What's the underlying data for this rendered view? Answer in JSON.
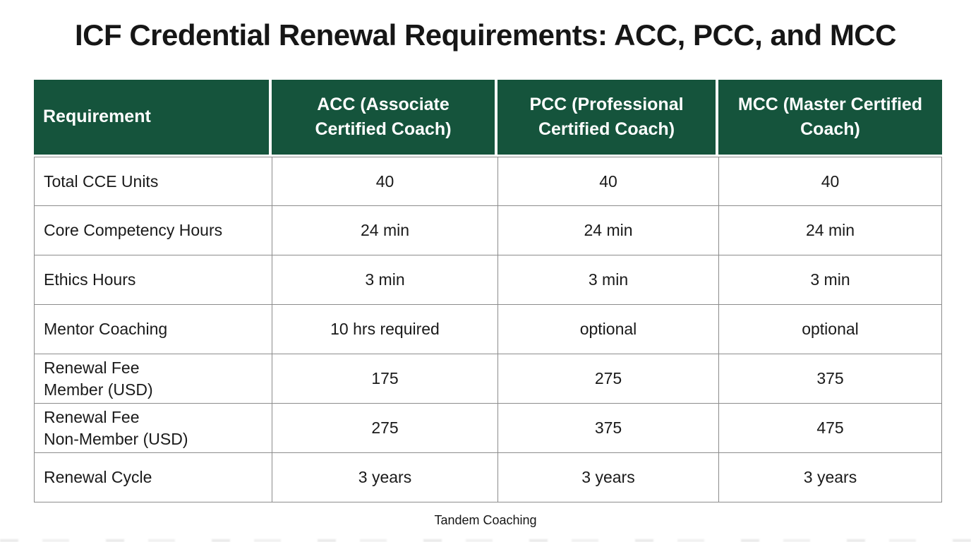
{
  "chart_data": {
    "type": "table",
    "title": "ICF Credential Renewal Requirements: ACC, PCC, and MCC",
    "caption": "Tandem Coaching",
    "columns": [
      "Requirement",
      "ACC (Associate Certified Coach)",
      "PCC (Professional Certified Coach)",
      "MCC (Master Certified Coach)"
    ],
    "rows": [
      {
        "label": "Total CCE Units",
        "values": [
          "40",
          "40",
          "40"
        ]
      },
      {
        "label": "Core Competency Hours",
        "values": [
          "24 min",
          "24 min",
          "24 min"
        ]
      },
      {
        "label": "Ethics Hours",
        "values": [
          "3 min",
          "3 min",
          "3 min"
        ]
      },
      {
        "label": "Mentor Coaching",
        "values": [
          "10 hrs required",
          "optional",
          "optional"
        ]
      },
      {
        "label": "Renewal Fee\nMember (USD)",
        "values": [
          "175",
          "275",
          "375"
        ]
      },
      {
        "label": "Renewal Fee\nNon-Member (USD)",
        "values": [
          "275",
          "375",
          "475"
        ]
      },
      {
        "label": "Renewal Cycle",
        "values": [
          "3 years",
          "3 years",
          "3 years"
        ]
      }
    ],
    "layout": {
      "header_position": "top",
      "first_column_align": "left",
      "value_align": "center",
      "grid": true
    }
  },
  "colors": {
    "header_background": "#15543C",
    "header_text": "#FFFFFF",
    "body_text": "#1A1A1A",
    "grid_border": "#8C8C8C",
    "page_background": "#FFFFFF"
  }
}
